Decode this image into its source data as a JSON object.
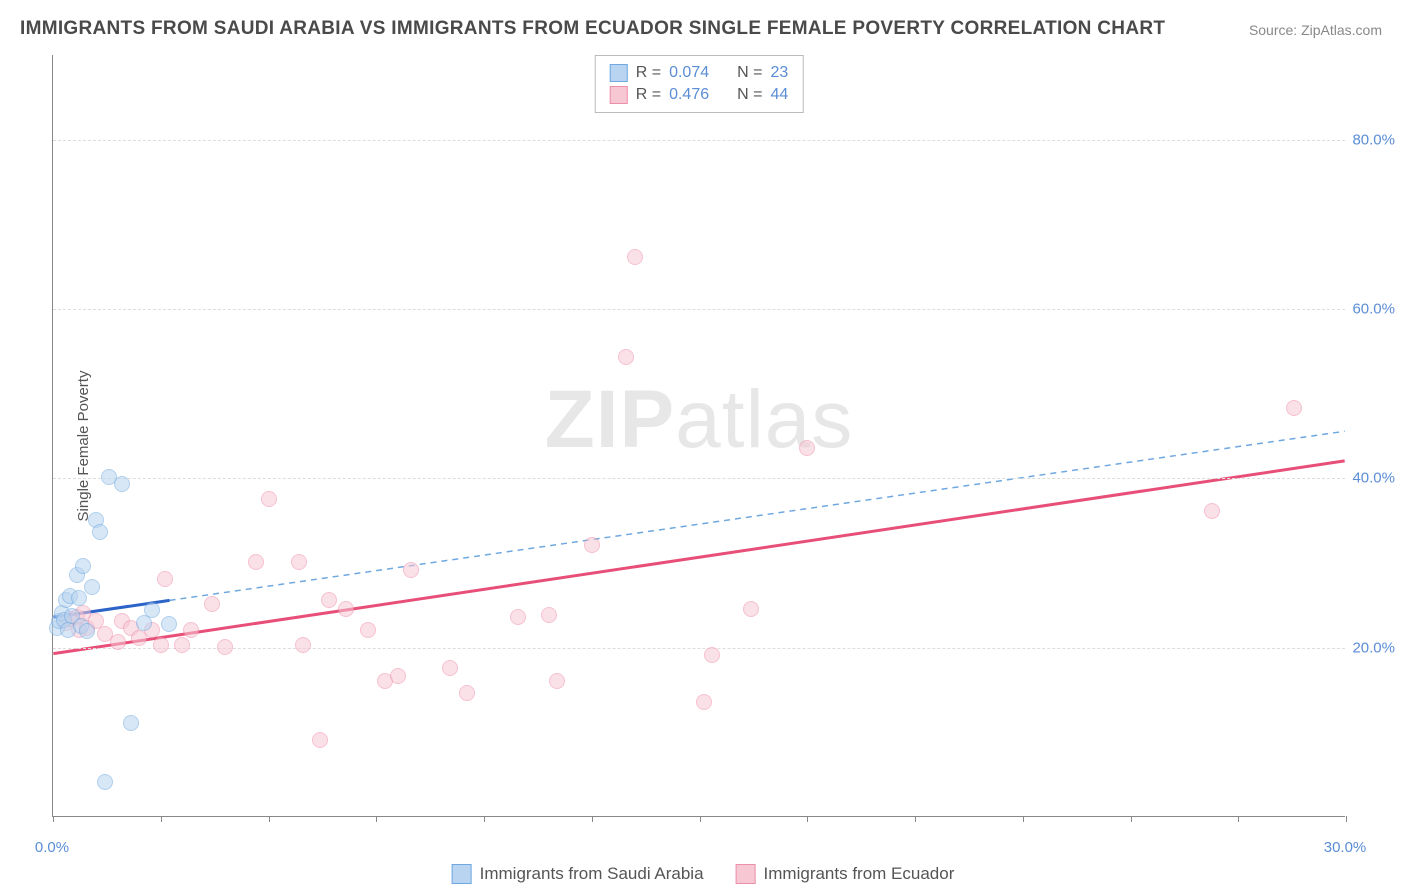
{
  "title": "IMMIGRANTS FROM SAUDI ARABIA VS IMMIGRANTS FROM ECUADOR SINGLE FEMALE POVERTY CORRELATION CHART",
  "source": "Source: ZipAtlas.com",
  "ylabel": "Single Female Poverty",
  "watermark_a": "ZIP",
  "watermark_b": "atlas",
  "chart": {
    "type": "scatter",
    "xlim": [
      0,
      30
    ],
    "ylim": [
      0,
      90
    ],
    "background_color": "#ffffff",
    "grid_color": "#dddddd",
    "axis_color": "#888888",
    "tick_label_color": "#5b8dd6",
    "y_ticks": [
      20,
      40,
      60,
      80
    ],
    "y_tick_labels": [
      "20.0%",
      "40.0%",
      "60.0%",
      "80.0%"
    ],
    "x_tick_positions": [
      0,
      2.5,
      5,
      7.5,
      10,
      12.5,
      15,
      17.5,
      20,
      22.5,
      25,
      27.5,
      30
    ],
    "x_min_label": "0.0%",
    "x_max_label": "30.0%",
    "point_radius": 8
  },
  "series": {
    "saudi": {
      "label": "Immigrants from Saudi Arabia",
      "fill": "#b8d4f0",
      "stroke": "#6fa8e0",
      "fill_opacity": 0.55,
      "R": "0.074",
      "N": "23",
      "trend_solid": {
        "x1": 0,
        "y1": 23.5,
        "x2": 2.7,
        "y2": 25.5,
        "color": "#2b63c8",
        "width": 3
      },
      "trend_dashed": {
        "x1": 2.7,
        "y1": 25.5,
        "x2": 30,
        "y2": 45.5,
        "color": "#6fa8e0",
        "width": 1.5,
        "dash": "6,5"
      },
      "points": [
        [
          0.1,
          22.2
        ],
        [
          0.15,
          23.0
        ],
        [
          0.2,
          24.0
        ],
        [
          0.25,
          23.1
        ],
        [
          0.3,
          25.5
        ],
        [
          0.35,
          22.0
        ],
        [
          0.4,
          26.0
        ],
        [
          0.45,
          23.6
        ],
        [
          0.55,
          28.5
        ],
        [
          0.6,
          25.8
        ],
        [
          0.65,
          22.5
        ],
        [
          0.7,
          29.5
        ],
        [
          0.8,
          21.9
        ],
        [
          0.9,
          27.0
        ],
        [
          1.0,
          35.0
        ],
        [
          1.1,
          33.5
        ],
        [
          1.2,
          4.0
        ],
        [
          1.3,
          40.0
        ],
        [
          1.6,
          39.2
        ],
        [
          1.8,
          11.0
        ],
        [
          2.1,
          22.8
        ],
        [
          2.3,
          24.3
        ],
        [
          2.7,
          22.7
        ]
      ]
    },
    "ecuador": {
      "label": "Immigrants from Ecuador",
      "fill": "#f7c7d4",
      "stroke": "#ed8faa",
      "fill_opacity": 0.55,
      "R": "0.476",
      "N": "44",
      "trend_solid": {
        "x1": 0,
        "y1": 19.2,
        "x2": 30,
        "y2": 42.0,
        "color": "#e84f78",
        "width": 3
      },
      "points": [
        [
          0.3,
          22.8
        ],
        [
          0.4,
          23.3
        ],
        [
          0.55,
          23.5
        ],
        [
          0.6,
          22.0
        ],
        [
          0.7,
          24.0
        ],
        [
          0.8,
          22.2
        ],
        [
          1.0,
          23.0
        ],
        [
          1.2,
          21.5
        ],
        [
          1.5,
          20.5
        ],
        [
          1.6,
          23.0
        ],
        [
          1.8,
          22.2
        ],
        [
          2.0,
          21.0
        ],
        [
          2.3,
          22.0
        ],
        [
          2.5,
          20.2
        ],
        [
          2.6,
          28.0
        ],
        [
          3.0,
          20.2
        ],
        [
          3.2,
          22.0
        ],
        [
          3.7,
          25.0
        ],
        [
          4.0,
          20.0
        ],
        [
          4.7,
          30.0
        ],
        [
          5.0,
          37.5
        ],
        [
          5.7,
          30.0
        ],
        [
          5.8,
          20.2
        ],
        [
          6.2,
          9.0
        ],
        [
          6.4,
          25.5
        ],
        [
          6.8,
          24.5
        ],
        [
          7.3,
          22.0
        ],
        [
          7.7,
          16.0
        ],
        [
          8.0,
          16.5
        ],
        [
          8.3,
          29.0
        ],
        [
          9.2,
          17.5
        ],
        [
          9.6,
          14.5
        ],
        [
          10.8,
          23.5
        ],
        [
          11.5,
          23.7
        ],
        [
          11.7,
          16.0
        ],
        [
          12.5,
          32.0
        ],
        [
          13.3,
          54.2
        ],
        [
          13.5,
          66.0
        ],
        [
          15.1,
          13.5
        ],
        [
          15.3,
          19.0
        ],
        [
          16.2,
          24.5
        ],
        [
          17.5,
          43.5
        ],
        [
          26.9,
          36.0
        ],
        [
          28.8,
          48.2
        ]
      ]
    }
  },
  "stats_labels": {
    "R": "R =",
    "N": "N ="
  }
}
